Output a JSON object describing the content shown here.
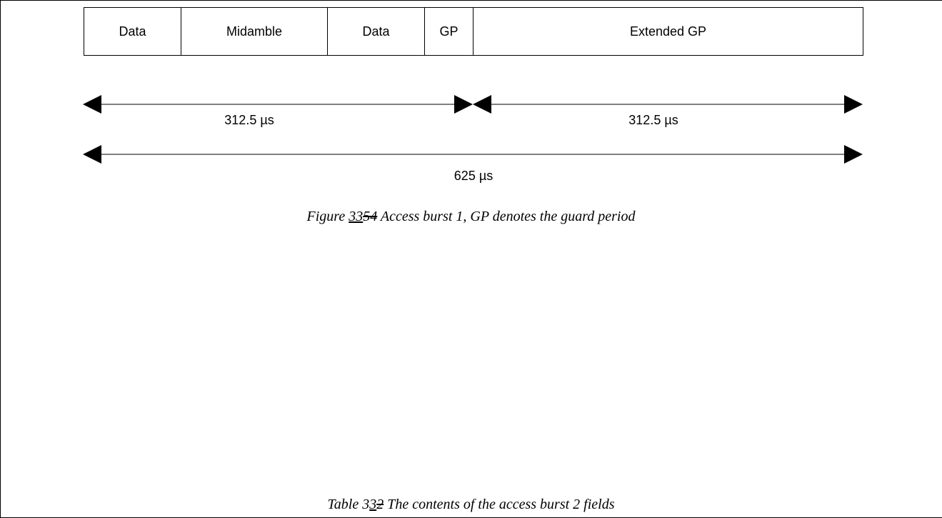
{
  "burst_fields": [
    "Data",
    "Midamble",
    "Data",
    "GP",
    "Extended GP"
  ],
  "durations": {
    "first_half": "312.5 µs",
    "second_half": "312.5 µs",
    "total": "625 µs"
  },
  "figure_caption": {
    "prefix": "Figure ",
    "number_inserted": "33",
    "number_deleted": "54",
    "text": " Access burst 1, GP denotes the guard period"
  },
  "table_caption": {
    "prefix": "Table ",
    "number_plain": "3",
    "number_inserted": "3",
    "number_deleted": "2",
    "text": " The contents of the access burst 2 fields"
  }
}
